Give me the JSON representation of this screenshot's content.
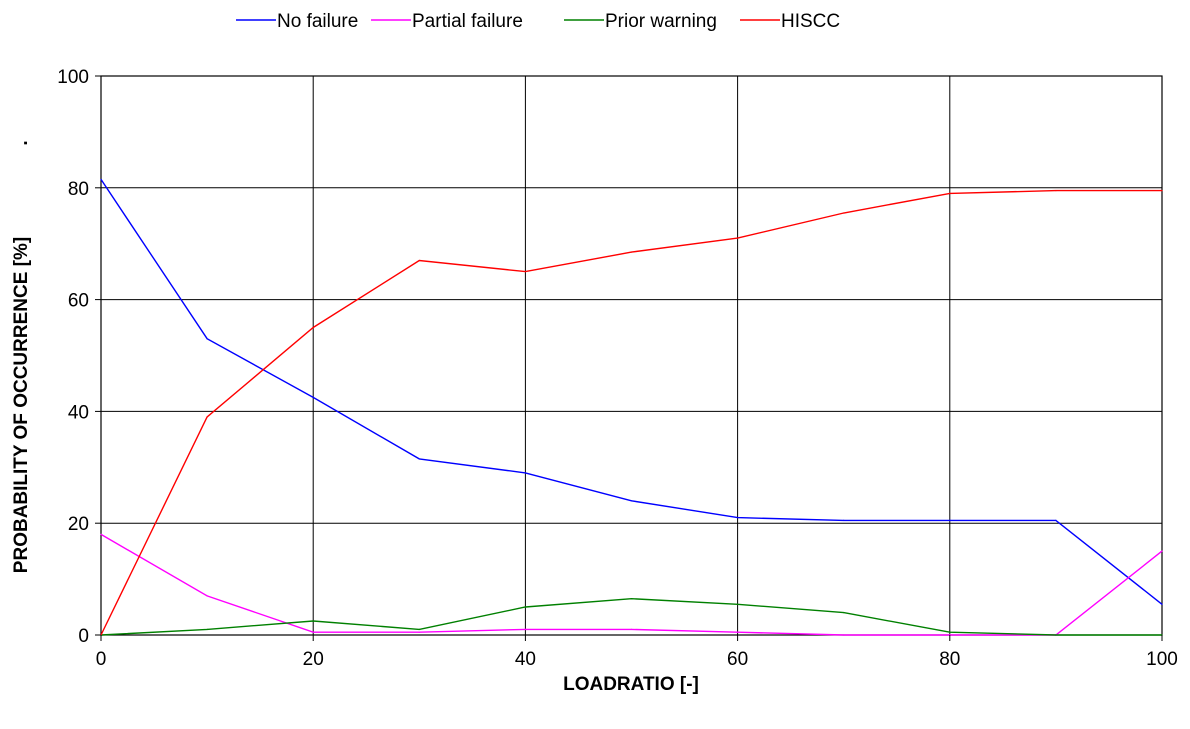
{
  "chart_data": {
    "type": "line",
    "xlabel": "LOADRATIO [-]",
    "ylabel": "PROBABILITY OF OCCURRENCE [%]",
    "ylabel_suffix": ".",
    "xlim": [
      0,
      100
    ],
    "ylim": [
      0,
      100
    ],
    "x_ticks": [
      0,
      20,
      40,
      60,
      80,
      100
    ],
    "y_ticks": [
      0,
      20,
      40,
      60,
      80,
      100
    ],
    "grid": true,
    "legend_position": "top",
    "x": [
      0,
      10,
      20,
      30,
      40,
      50,
      60,
      70,
      80,
      90,
      100
    ],
    "series": [
      {
        "name": "No failure",
        "color": "#0000ff",
        "values": [
          81.5,
          53,
          42.5,
          31.5,
          29,
          24,
          21,
          20.5,
          20.5,
          20.5,
          5.5
        ]
      },
      {
        "name": "Partial failure",
        "color": "#ff00ff",
        "values": [
          18,
          7,
          0.5,
          0.5,
          1,
          1,
          0.5,
          0,
          0,
          0,
          15
        ]
      },
      {
        "name": "Prior warning",
        "color": "#008000",
        "values": [
          0,
          1,
          2.5,
          1,
          5,
          6.5,
          5.5,
          4,
          0.5,
          0,
          0
        ]
      },
      {
        "name": "HISCC",
        "color": "#ff0000",
        "values": [
          0,
          39,
          55,
          67,
          65,
          68.5,
          71,
          75.5,
          79,
          79.5,
          79.5
        ]
      }
    ]
  }
}
